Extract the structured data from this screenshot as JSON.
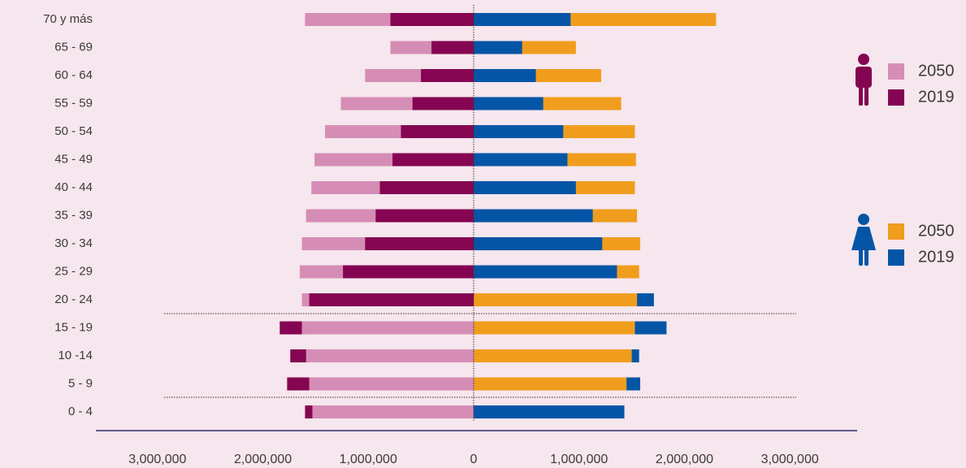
{
  "chart_data": {
    "type": "pyramid",
    "categories": [
      "70 y más",
      "65 - 69",
      "60 - 64",
      "55 - 59",
      "50 - 54",
      "45 - 49",
      "40 - 44",
      "35 - 39",
      "30 - 34",
      "25 - 29",
      "20 - 24",
      "15 - 19",
      "10 -14",
      "5 - 9",
      "0 - 4"
    ],
    "series": [
      {
        "name": "2050",
        "color": "#d58db5",
        "side": "left",
        "values": [
          1600000,
          790000,
          1030000,
          1260000,
          1410000,
          1510000,
          1540000,
          1590000,
          1630000,
          1650000,
          1630000,
          1630000,
          1590000,
          1560000,
          1530000
        ]
      },
      {
        "name": "2019",
        "color": "#850552",
        "side": "left",
        "values": [
          790000,
          400000,
          500000,
          580000,
          690000,
          770000,
          890000,
          930000,
          1030000,
          1240000,
          1560000,
          1840000,
          1740000,
          1770000,
          1600000
        ]
      },
      {
        "name": "2050",
        "color": "#f09d1e",
        "side": "right",
        "values": [
          2300000,
          970000,
          1210000,
          1400000,
          1530000,
          1540000,
          1530000,
          1550000,
          1580000,
          1570000,
          1550000,
          1530000,
          1500000,
          1450000,
          1430000
        ]
      },
      {
        "name": "2019",
        "color": "#0555a6",
        "side": "right",
        "values": [
          920000,
          460000,
          590000,
          660000,
          850000,
          890000,
          970000,
          1130000,
          1220000,
          1360000,
          1710000,
          1830000,
          1570000,
          1580000,
          1430000
        ]
      }
    ],
    "xlim": [
      -3600000,
      3600000
    ],
    "xticks": [
      {
        "value": -3000000,
        "label": "3,000,000"
      },
      {
        "value": -2000000,
        "label": "2,000,000"
      },
      {
        "value": -1000000,
        "label": "1,000,000"
      },
      0,
      {
        "value": 1000000,
        "label": "1,000,000"
      },
      {
        "value": 2000000,
        "label": "2,000,000"
      },
      {
        "value": 3000000,
        "label": "3,000,000"
      }
    ]
  }
}
